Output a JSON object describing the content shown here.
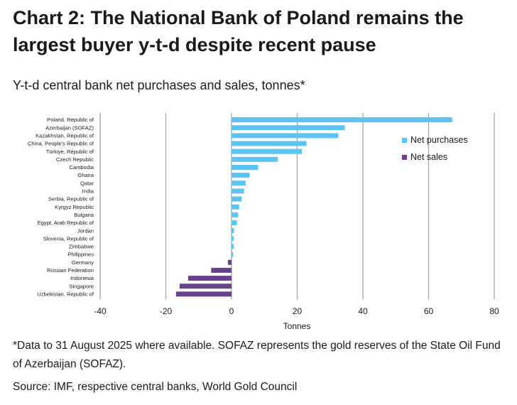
{
  "title": "Chart 2: The National Bank of Poland remains the largest buyer y-t-d despite recent pause",
  "subtitle": "Y-t-d central bank net purchases and sales, tonnes*",
  "footnote": "*Data to 31 August 2025 where available. SOFAZ represents the gold reserves of the State Oil Fund of Azerbaijan (SOFAZ).",
  "source": "Source: IMF, respective central banks, World Gold Council",
  "colors": {
    "purchases": "#5bc4f2",
    "sales": "#6b3f8c",
    "grid": "#a6a6a6"
  },
  "chart_data": {
    "type": "bar",
    "orientation": "horizontal",
    "xlabel": "Tonnes",
    "xlim": [
      -40,
      80
    ],
    "xticks": [
      -40,
      -20,
      0,
      20,
      40,
      60,
      80
    ],
    "grid": true,
    "legend_position": "right",
    "categories": [
      "Poland, Republic of",
      "Azerbaijan (SOFAZ)",
      "Kazakhstan, Republic of",
      "China, People's Republic of",
      "Türkiye, Republic of",
      "Czech Republic",
      "Cambodia",
      "Ghana",
      "Qatar",
      "India",
      "Serbia, Republic of",
      "Kyrgyz Republic",
      "Bulgaria",
      "Egypt, Arab Republic of",
      "Jordan",
      "Slovenia, Republic of",
      "Zimbabwe",
      "Philippines",
      "Germany",
      "Russian Federation",
      "Indonesia",
      "Singapore",
      "Uzbekistan, Republic of"
    ],
    "values": [
      67.2,
      34.5,
      32.5,
      22.8,
      21.4,
      14.1,
      8.1,
      5.5,
      4.3,
      3.8,
      3.1,
      2.3,
      2.0,
      1.6,
      0.8,
      0.7,
      0.7,
      0.5,
      -1.1,
      -6.2,
      -13.2,
      -15.8,
      -16.9
    ],
    "legend": [
      "Net purchases",
      "Net sales"
    ]
  }
}
